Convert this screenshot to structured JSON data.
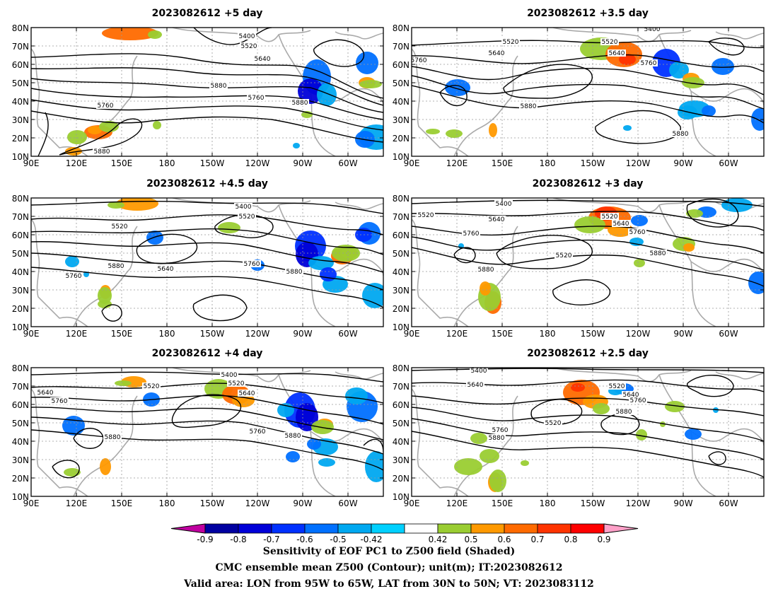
{
  "panels": [
    {
      "title": "2023082612 +5 day"
    },
    {
      "title": "2023082612 +3.5 day"
    },
    {
      "title": "2023082612 +4.5 day"
    },
    {
      "title": "2023082612 +3 day"
    },
    {
      "title": "2023082612 +4 day"
    },
    {
      "title": "2023082612 +2.5 day"
    }
  ],
  "axes": {
    "lon_labels": [
      "90E",
      "120E",
      "150E",
      "180",
      "150W",
      "120W",
      "90W",
      "60W"
    ],
    "lat_labels": [
      "10N",
      "20N",
      "30N",
      "40N",
      "50N",
      "60N",
      "70N",
      "80N"
    ]
  },
  "contour_labels": [
    "5400",
    "5520",
    "5640",
    "5760",
    "5880"
  ],
  "colorbar": {
    "ticks": [
      "-0.9",
      "-0.8",
      "-0.7",
      "-0.6",
      "-0.5",
      "-0.42",
      "0.42",
      "0.5",
      "0.6",
      "0.7",
      "0.8",
      "0.9"
    ],
    "colors": [
      "#0000a0",
      "#0000d8",
      "#0030ff",
      "#0070ff",
      "#00a8f0",
      "#00d0ff",
      "#ffffff",
      "#9acd32",
      "#ff9900",
      "#ff6a00",
      "#ff3300",
      "#ff0000"
    ],
    "low_arrow": "#c000a0",
    "high_arrow": "#ffa0c8"
  },
  "captions": {
    "line1": "Sensitivity of EOF PC1 to Z500 field (Shaded)",
    "line2": "CMC ensemble mean Z500 (Contour); unit(m); IT:2023082612",
    "line3": "Valid area: LON from 95W to 65W, LAT from 30N to 50N; VT: 2023083112"
  }
}
